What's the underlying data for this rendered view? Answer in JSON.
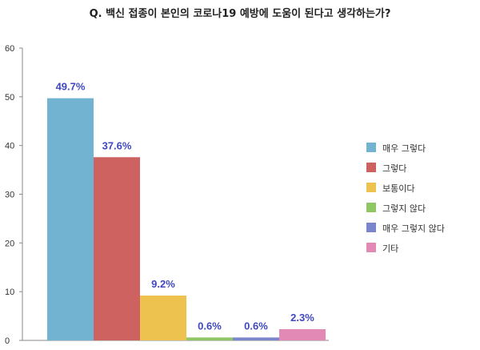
{
  "chart_data": {
    "type": "bar",
    "title": "Q. 백신 접종이 본인의 코로나19 예방에 도움이 된다고 생각하는가?",
    "categories": [
      "매우 그렇다",
      "그렇다",
      "보통이다",
      "그렇지 않다",
      "매우 그렇지 않다",
      "기타"
    ],
    "values": [
      49.7,
      37.6,
      9.2,
      0.6,
      0.6,
      2.3
    ],
    "value_labels": [
      "49.7%",
      "37.6%",
      "9.2%",
      "0.6%",
      "0.6%",
      "2.3%"
    ],
    "colors": [
      "#72b3d2",
      "#cd6260",
      "#edc24f",
      "#8ec763",
      "#7b85cb",
      "#e289b5"
    ],
    "label_color": "#3f48c0",
    "xlabel": "",
    "ylabel": "",
    "ylim": [
      0,
      60
    ],
    "yticks": [
      0,
      10,
      20,
      30,
      40,
      50,
      60
    ],
    "grid": false,
    "legend_position": "right"
  }
}
